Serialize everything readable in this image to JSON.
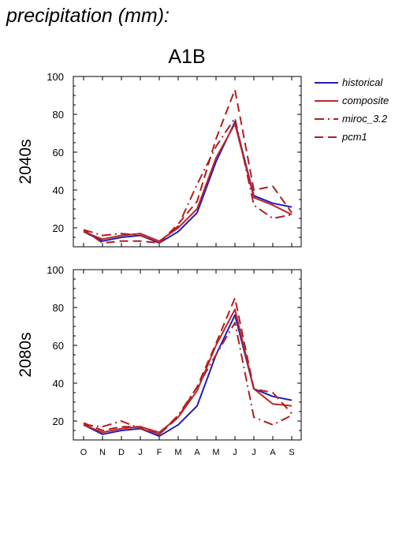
{
  "header": "precipitation (mm):",
  "scenario": "A1B",
  "legend": [
    {
      "name": "historical",
      "color": "#1f1fb4",
      "dash": "solid"
    },
    {
      "name": "composite",
      "color": "#c0262a",
      "dash": "solid"
    },
    {
      "name": "miroc_3.2",
      "color": "#b01e1e",
      "dash": "dashdot"
    },
    {
      "name": "pcm1",
      "color": "#b01e1e",
      "dash": "dashed"
    }
  ],
  "chart_data": [
    {
      "type": "line",
      "title": "2040s",
      "categories": [
        "O",
        "N",
        "D",
        "J",
        "F",
        "M",
        "A",
        "M",
        "J",
        "J",
        "A",
        "S"
      ],
      "ylim": [
        10,
        100
      ],
      "yticks": [
        20,
        40,
        60,
        80,
        100
      ],
      "series": [
        {
          "name": "historical",
          "values": [
            18,
            13,
            15,
            16,
            12,
            18,
            28,
            55,
            76,
            37,
            33,
            31
          ]
        },
        {
          "name": "composite",
          "values": [
            18,
            14,
            16,
            17,
            13,
            20,
            30,
            57,
            75,
            36,
            32,
            27
          ]
        },
        {
          "name": "miroc_3.2",
          "values": [
            19,
            16,
            17,
            16,
            12,
            21,
            43,
            63,
            78,
            32,
            25,
            27
          ]
        },
        {
          "name": "pcm1",
          "values": [
            19,
            12,
            13,
            13,
            12,
            22,
            34,
            67,
            93,
            40,
            42,
            28
          ]
        }
      ]
    },
    {
      "type": "line",
      "title": "2080s",
      "categories": [
        "O",
        "N",
        "D",
        "J",
        "F",
        "M",
        "A",
        "M",
        "J",
        "J",
        "A",
        "S"
      ],
      "ylim": [
        10,
        100
      ],
      "yticks": [
        20,
        40,
        60,
        80,
        100
      ],
      "series": [
        {
          "name": "historical",
          "values": [
            18,
            13,
            15,
            16,
            12,
            18,
            28,
            55,
            76,
            37,
            33,
            31
          ]
        },
        {
          "name": "composite",
          "values": [
            18,
            14,
            16,
            17,
            14,
            22,
            36,
            60,
            79,
            37,
            29,
            28
          ]
        },
        {
          "name": "miroc_3.2",
          "values": [
            18,
            17,
            20,
            16,
            13,
            23,
            38,
            55,
            72,
            22,
            18,
            23
          ]
        },
        {
          "name": "pcm1",
          "values": [
            19,
            15,
            17,
            17,
            13,
            22,
            38,
            61,
            85,
            37,
            35,
            24
          ]
        }
      ]
    }
  ]
}
